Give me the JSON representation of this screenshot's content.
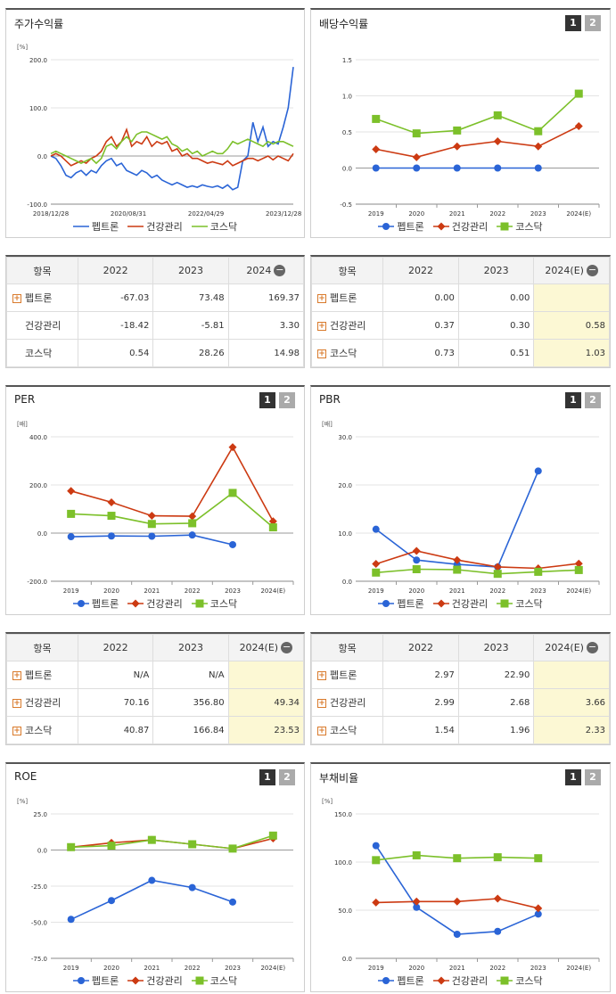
{
  "panels": [
    {
      "id": "p0",
      "title": "주가수익률",
      "btns": [],
      "chart_data": {
        "type": "line",
        "unit": "[%]",
        "ylim": [
          -100,
          200
        ],
        "yticks": [
          -100,
          0,
          100,
          200
        ],
        "ytick_labels": [
          "-100.0",
          "0.0",
          "100.0",
          "200.0"
        ],
        "x_labels": [
          "2018/12/28",
          "2020/08/31",
          "2022/04/29",
          "2023/12/28"
        ],
        "series": [
          {
            "name": "펩트론",
            "color": "#2a64d6",
            "values": [
              0,
              -5,
              -20,
              -40,
              -45,
              -35,
              -30,
              -40,
              -30,
              -35,
              -20,
              -10,
              -5,
              -20,
              -15,
              -30,
              -35,
              -40,
              -30,
              -35,
              -45,
              -40,
              -50,
              -55,
              -60,
              -55,
              -60,
              -65,
              -62,
              -65,
              -60,
              -63,
              -65,
              -62,
              -67,
              -60,
              -70,
              -65,
              -10,
              0,
              70,
              30,
              60,
              20,
              30,
              25,
              60,
              100,
              185
            ]
          },
          {
            "name": "건강관리",
            "color": "#cc3a12",
            "values": [
              0,
              5,
              0,
              -10,
              -20,
              -15,
              -10,
              -15,
              -5,
              0,
              10,
              30,
              40,
              20,
              30,
              55,
              20,
              30,
              25,
              40,
              20,
              30,
              25,
              30,
              10,
              15,
              0,
              5,
              -5,
              -5,
              -10,
              -15,
              -12,
              -15,
              -18,
              -10,
              -20,
              -15,
              -10,
              -5,
              -5,
              -10,
              -5,
              0,
              -8,
              0,
              -5,
              -10,
              5
            ]
          },
          {
            "name": "코스닥",
            "color": "#7cc02a",
            "values": [
              5,
              10,
              5,
              0,
              -5,
              -10,
              -15,
              -10,
              -5,
              -15,
              -5,
              20,
              25,
              15,
              30,
              40,
              30,
              45,
              50,
              50,
              45,
              40,
              35,
              40,
              25,
              20,
              10,
              15,
              5,
              10,
              0,
              5,
              10,
              5,
              5,
              15,
              30,
              25,
              30,
              35,
              30,
              25,
              20,
              30,
              25,
              30,
              30,
              25,
              20
            ]
          }
        ]
      }
    },
    {
      "id": "p1",
      "title": "배당수익률",
      "btns": [
        "1",
        "2"
      ],
      "chart_data": {
        "type": "line",
        "unit": "",
        "ylim": [
          -0.5,
          1.5
        ],
        "yticks": [
          -0.5,
          0,
          0.5,
          1.0,
          1.5
        ],
        "ytick_labels": [
          "-0.5",
          "0.0",
          "0.5",
          "1.0",
          "1.5"
        ],
        "categories": [
          "2019",
          "2020",
          "2021",
          "2022",
          "2023",
          "2024(E)"
        ],
        "series": [
          {
            "name": "펩트론",
            "color": "#2a64d6",
            "marker": "circle",
            "values": [
              0,
              0,
              0,
              0,
              0,
              null
            ]
          },
          {
            "name": "건강관리",
            "color": "#cc3a12",
            "marker": "diamond",
            "values": [
              0.26,
              0.15,
              0.3,
              0.37,
              0.3,
              0.58
            ]
          },
          {
            "name": "코스닥",
            "color": "#7cc02a",
            "marker": "square",
            "values": [
              0.68,
              0.48,
              0.52,
              0.73,
              0.51,
              1.03
            ]
          }
        ]
      }
    },
    {
      "id": "p2",
      "title": "PER",
      "btns": [
        "1",
        "2"
      ],
      "chart_data": {
        "type": "line",
        "unit": "[배]",
        "ylim": [
          -200,
          400
        ],
        "yticks": [
          -200,
          0,
          200,
          400
        ],
        "ytick_labels": [
          "-200.0",
          "0.0",
          "200.0",
          "400.0"
        ],
        "categories": [
          "2019",
          "2020",
          "2021",
          "2022",
          "2023",
          "2024(E)"
        ],
        "series": [
          {
            "name": "펩트론",
            "color": "#2a64d6",
            "marker": "circle",
            "values": [
              -15,
              -12,
              -13,
              -8,
              -48,
              null
            ]
          },
          {
            "name": "건강관리",
            "color": "#cc3a12",
            "marker": "diamond",
            "values": [
              175,
              128,
              72,
              70,
              357,
              49
            ]
          },
          {
            "name": "코스닥",
            "color": "#7cc02a",
            "marker": "square",
            "values": [
              80,
              72,
              38,
              41,
              167,
              24
            ]
          }
        ]
      }
    },
    {
      "id": "p3",
      "title": "PBR",
      "btns": [
        "1",
        "2"
      ],
      "chart_data": {
        "type": "line",
        "unit": "[배]",
        "ylim": [
          0,
          30
        ],
        "yticks": [
          0,
          10,
          20,
          30
        ],
        "ytick_labels": [
          "0.0",
          "10.0",
          "20.0",
          "30.0"
        ],
        "categories": [
          "2019",
          "2020",
          "2021",
          "2022",
          "2023",
          "2024(E)"
        ],
        "series": [
          {
            "name": "펩트론",
            "color": "#2a64d6",
            "marker": "circle",
            "values": [
              10.8,
              4.4,
              3.5,
              2.97,
              22.9,
              null
            ]
          },
          {
            "name": "건강관리",
            "color": "#cc3a12",
            "marker": "diamond",
            "values": [
              3.6,
              6.3,
              4.4,
              2.99,
              2.68,
              3.66
            ]
          },
          {
            "name": "코스닥",
            "color": "#7cc02a",
            "marker": "square",
            "values": [
              1.8,
              2.5,
              2.4,
              1.54,
              1.96,
              2.33
            ]
          }
        ]
      }
    },
    {
      "id": "p4",
      "title": "ROE",
      "btns": [
        "1",
        "2"
      ],
      "chart_data": {
        "type": "line",
        "unit": "[%]",
        "ylim": [
          -75,
          25
        ],
        "yticks": [
          -75,
          -50,
          -25,
          0,
          25
        ],
        "ytick_labels": [
          "-75.0",
          "-50.0",
          "-25.0",
          "0.0",
          "25.0"
        ],
        "categories": [
          "2019",
          "2020",
          "2021",
          "2022",
          "2023",
          "2024(E)"
        ],
        "series": [
          {
            "name": "펩트론",
            "color": "#2a64d6",
            "marker": "circle",
            "values": [
              -48,
              -35,
              -21,
              -26,
              -36,
              null
            ]
          },
          {
            "name": "건강관리",
            "color": "#cc3a12",
            "marker": "diamond",
            "values": [
              2,
              5,
              7,
              4,
              1,
              8
            ]
          },
          {
            "name": "코스닥",
            "color": "#7cc02a",
            "marker": "square",
            "values": [
              2,
              3,
              7,
              4,
              1,
              10
            ]
          }
        ]
      }
    },
    {
      "id": "p5",
      "title": "부채비율",
      "btns": [
        "1",
        "2"
      ],
      "chart_data": {
        "type": "line",
        "unit": "[%]",
        "ylim": [
          0,
          150
        ],
        "yticks": [
          0,
          50,
          100,
          150
        ],
        "ytick_labels": [
          "0.0",
          "50.0",
          "100.0",
          "150.0"
        ],
        "categories": [
          "2019",
          "2020",
          "2021",
          "2022",
          "2023",
          "2024(E)"
        ],
        "series": [
          {
            "name": "펩트론",
            "color": "#2a64d6",
            "marker": "circle",
            "values": [
              117,
              53,
              25,
              28,
              46,
              null
            ]
          },
          {
            "name": "건강관리",
            "color": "#cc3a12",
            "marker": "diamond",
            "values": [
              58,
              59,
              59,
              62,
              52,
              null
            ]
          },
          {
            "name": "코스닥",
            "color": "#7cc02a",
            "marker": "square",
            "values": [
              102,
              107,
              104,
              105,
              104,
              null
            ]
          }
        ]
      }
    }
  ],
  "tables": [
    {
      "id": "t0",
      "headers": [
        "항목",
        "2022",
        "2023",
        "2024"
      ],
      "minus": true,
      "est_col": false,
      "rows": [
        {
          "label": "펩트론",
          "plus": true,
          "vals": [
            "-67.03",
            "73.48",
            "169.37"
          ]
        },
        {
          "label": "건강관리",
          "plus": false,
          "vals": [
            "-18.42",
            "-5.81",
            "3.30"
          ]
        },
        {
          "label": "코스닥",
          "plus": false,
          "vals": [
            "0.54",
            "28.26",
            "14.98"
          ]
        }
      ]
    },
    {
      "id": "t1",
      "headers": [
        "항목",
        "2022",
        "2023",
        "2024(E)"
      ],
      "minus": true,
      "est_col": true,
      "rows": [
        {
          "label": "펩트론",
          "plus": true,
          "vals": [
            "0.00",
            "0.00",
            ""
          ]
        },
        {
          "label": "건강관리",
          "plus": true,
          "vals": [
            "0.37",
            "0.30",
            "0.58"
          ]
        },
        {
          "label": "코스닥",
          "plus": true,
          "vals": [
            "0.73",
            "0.51",
            "1.03"
          ]
        }
      ]
    },
    {
      "id": "t2",
      "headers": [
        "항목",
        "2022",
        "2023",
        "2024(E)"
      ],
      "minus": true,
      "est_col": true,
      "rows": [
        {
          "label": "펩트론",
          "plus": true,
          "vals": [
            "N/A",
            "N/A",
            ""
          ]
        },
        {
          "label": "건강관리",
          "plus": true,
          "vals": [
            "70.16",
            "356.80",
            "49.34"
          ]
        },
        {
          "label": "코스닥",
          "plus": true,
          "vals": [
            "40.87",
            "166.84",
            "23.53"
          ]
        }
      ]
    },
    {
      "id": "t3",
      "headers": [
        "항목",
        "2022",
        "2023",
        "2024(E)"
      ],
      "minus": true,
      "est_col": true,
      "rows": [
        {
          "label": "펩트론",
          "plus": true,
          "vals": [
            "2.97",
            "22.90",
            ""
          ]
        },
        {
          "label": "건강관리",
          "plus": true,
          "vals": [
            "2.99",
            "2.68",
            "3.66"
          ]
        },
        {
          "label": "코스닥",
          "plus": true,
          "vals": [
            "1.54",
            "1.96",
            "2.33"
          ]
        }
      ]
    }
  ],
  "legend": [
    "펩트론",
    "건강관리",
    "코스닥"
  ]
}
